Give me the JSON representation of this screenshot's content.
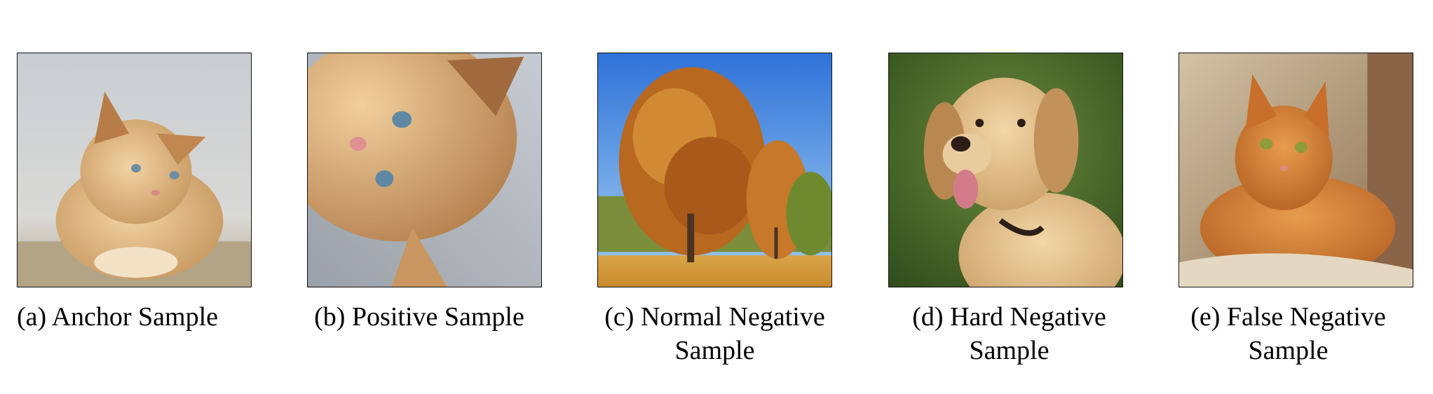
{
  "panels": [
    {
      "caption": "(a) Anchor Sample",
      "subject": "kitten"
    },
    {
      "caption": "(b) Positive Sample",
      "subject": "kitten-rotated-closeup"
    },
    {
      "caption": "(c) Normal Negative\nSample",
      "subject": "autumn-tree"
    },
    {
      "caption": "(d) Hard Negative\nSample",
      "subject": "golden-retriever"
    },
    {
      "caption": "(e) False Negative\nSample",
      "subject": "orange-tabby-cat"
    }
  ]
}
